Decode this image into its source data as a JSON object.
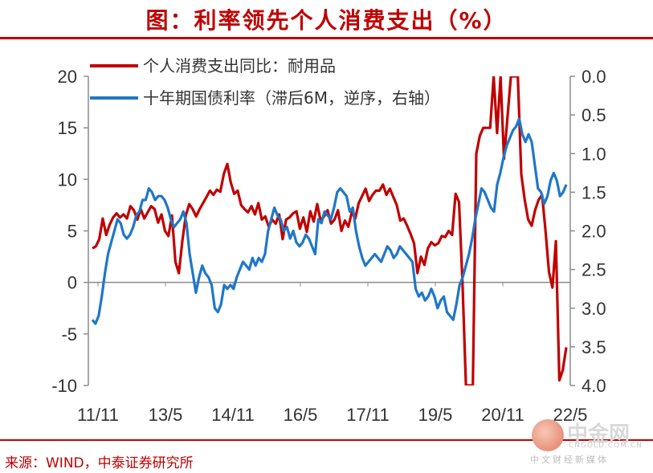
{
  "title": "图：利率领先个人消费支出（%）",
  "source": "来源：WIND，中泰证券研究所",
  "watermark": {
    "name": "中金网",
    "url": "CNGOLD.COM.CN",
    "sub": "中文财经新媒体"
  },
  "chart_data": {
    "type": "line",
    "x_labels": [
      "11/11",
      "13/5",
      "14/11",
      "16/5",
      "17/11",
      "19/5",
      "20/11",
      "22/5"
    ],
    "y_left": {
      "min": -10,
      "max": 20,
      "ticks": [
        "20",
        "15",
        "10",
        "5",
        "0",
        "-5",
        "-10"
      ]
    },
    "y_right": {
      "min": 0.0,
      "max": 4.0,
      "inverted": true,
      "ticks": [
        "0.0",
        "0.5",
        "1.0",
        "1.5",
        "2.0",
        "2.5",
        "3.0",
        "3.5",
        "4.0"
      ]
    },
    "series": [
      {
        "name": "个人消费支出同比：耐用品",
        "axis": "left",
        "color": "#c00000",
        "values": [
          3.3,
          3.5,
          4.2,
          6.2,
          4.6,
          5.6,
          6.3,
          6.7,
          6.3,
          6.6,
          6.2,
          7.4,
          7.0,
          6.1,
          7.1,
          6.2,
          6.8,
          7.4,
          7.1,
          5.8,
          6.6,
          5.0,
          4.5,
          6.5,
          2.0,
          0.9,
          4.0,
          6.5,
          7.6,
          7.1,
          6.4,
          7.1,
          7.7,
          8.3,
          8.9,
          8.5,
          9.0,
          8.8,
          10.5,
          11.5,
          9.7,
          8.6,
          8.9,
          7.5,
          7.1,
          6.8,
          7.4,
          6.6,
          7.7,
          6.1,
          6.4,
          5.4,
          6.1,
          5.7,
          6.6,
          4.2,
          6.1,
          6.3,
          6.7,
          6.9,
          5.2,
          6.3,
          4.9,
          6.9,
          5.9,
          7.6,
          6.0,
          6.4,
          7.0,
          5.7,
          6.1,
          7.0,
          5.0,
          6.0,
          5.4,
          6.8,
          6.2,
          7.7,
          8.4,
          9.1,
          7.9,
          8.5,
          8.9,
          8.9,
          9.5,
          8.5,
          9.1,
          8.3,
          7.5,
          6.0,
          6.2,
          5.5,
          4.7,
          3.8,
          0.9,
          2.5,
          1.7,
          3.3,
          3.9,
          3.6,
          3.8,
          4.5,
          4.4,
          5.0,
          4.6,
          8.6,
          7.8,
          0.0,
          -10.0,
          -10.0,
          -10.0,
          12.5,
          14.2,
          15.0,
          15.0,
          15.0,
          20.0,
          14.5,
          20.0,
          12.0,
          16.0,
          20.0,
          20.0,
          20.0,
          10.5,
          8.0,
          6.1,
          5.5,
          7.0,
          8.0,
          8.5,
          5.0,
          1.0,
          -0.5,
          4.0,
          -9.5,
          -8.5,
          -6.3
        ]
      },
      {
        "name": "十年期国债利率（滞后6M，逆序，右轴）",
        "axis": "right",
        "color": "#1f77c8",
        "values": [
          3.15,
          3.2,
          3.1,
          2.85,
          2.55,
          2.3,
          2.15,
          2.0,
          1.85,
          1.9,
          2.05,
          2.1,
          2.05,
          1.95,
          1.8,
          1.75,
          1.6,
          1.6,
          1.45,
          1.5,
          1.6,
          1.55,
          1.55,
          1.6,
          1.7,
          1.85,
          1.95,
          1.9,
          1.85,
          1.75,
          1.9,
          2.3,
          2.55,
          2.8,
          2.6,
          2.45,
          2.55,
          2.6,
          2.7,
          3.0,
          3.05,
          2.95,
          2.7,
          2.75,
          2.7,
          2.75,
          2.6,
          2.5,
          2.4,
          2.45,
          2.5,
          2.35,
          2.45,
          2.35,
          2.4,
          2.3,
          2.0,
          1.85,
          1.7,
          1.8,
          1.85,
          2.0,
          1.95,
          2.1,
          2.0,
          2.15,
          2.2,
          2.15,
          2.05,
          2.1,
          2.2,
          2.3,
          1.85,
          1.9,
          1.75,
          1.8,
          1.85,
          1.7,
          1.5,
          1.45,
          1.5,
          1.55,
          1.75,
          1.7,
          2.0,
          2.2,
          2.35,
          2.45,
          2.4,
          2.35,
          2.3,
          2.35,
          2.4,
          2.3,
          2.2,
          2.25,
          2.35,
          2.3,
          2.2,
          2.25,
          2.3,
          2.35,
          2.4,
          2.75,
          2.85,
          2.8,
          2.9,
          2.85,
          2.75,
          2.85,
          3.0,
          2.9,
          2.85,
          3.05,
          3.1,
          3.15,
          2.95,
          2.7,
          2.6,
          2.45,
          2.3,
          2.1,
          1.85,
          1.65,
          1.45,
          1.5,
          1.6,
          1.7,
          1.75,
          1.4,
          1.25,
          1.05,
          0.9,
          0.8,
          0.7,
          0.65,
          0.55,
          0.75,
          0.85,
          0.75,
          0.85,
          1.15,
          1.45,
          1.5,
          1.65,
          1.55,
          1.35,
          1.25,
          1.35,
          1.55,
          1.5,
          1.4
        ]
      }
    ]
  }
}
